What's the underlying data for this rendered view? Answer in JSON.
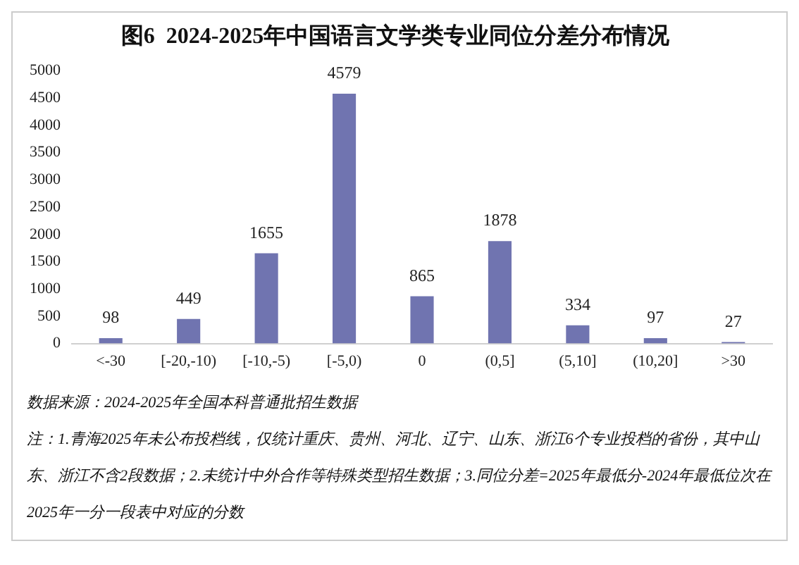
{
  "chart_data": {
    "type": "bar",
    "title": "图6  2024-2025年中国语言文学类专业同位分差分布情况",
    "categories": [
      "<-30",
      "[-20,-10)",
      "[-10,-5)",
      "[-5,0)",
      "0",
      "(0,5]",
      "(5,10]",
      "(10,20]",
      ">30"
    ],
    "values": [
      98,
      449,
      1655,
      4579,
      865,
      1878,
      334,
      97,
      27
    ],
    "color": "#7074b0",
    "ylim": [
      0,
      5000
    ],
    "yticks": [
      0,
      500,
      1000,
      1500,
      2000,
      2500,
      3000,
      3500,
      4000,
      4500,
      5000
    ],
    "grid": false,
    "legend": false,
    "data_labels": true,
    "annotations": [
      "数据来源：2024-2025年全国本科普通批招生数据",
      "注：1.青海2025年未公布投档线，仅统计重庆、贵州、河北、辽宁、山东、浙江6个专业投档的省份，其中山东、浙江不含2段数据；2.未统计中外合作等特殊类型招生数据；3.同位分差=2025年最低分-2024年最低位次在2025年一分一段表中对应的分数"
    ]
  }
}
